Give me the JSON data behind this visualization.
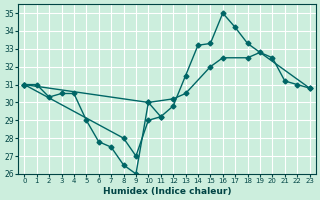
{
  "title": "",
  "xlabel": "Humidex (Indice chaleur)",
  "ylabel": "",
  "bg_color": "#cceedd",
  "line_color": "#006666",
  "grid_color": "#ffffff",
  "xlim": [
    -0.5,
    23.5
  ],
  "ylim": [
    26,
    35.5
  ],
  "yticks": [
    26,
    27,
    28,
    29,
    30,
    31,
    32,
    33,
    34,
    35
  ],
  "xticks": [
    0,
    1,
    2,
    3,
    4,
    5,
    6,
    7,
    8,
    9,
    10,
    11,
    12,
    13,
    14,
    15,
    16,
    17,
    18,
    19,
    20,
    21,
    22,
    23
  ],
  "series1": {
    "x": [
      0,
      1,
      2,
      3,
      4,
      5,
      6,
      7,
      8,
      9,
      10,
      11,
      12,
      13,
      14,
      15,
      16,
      17,
      18,
      19,
      20,
      21,
      22,
      23
    ],
    "y": [
      31.0,
      31.0,
      30.3,
      30.5,
      30.5,
      29.0,
      27.8,
      27.5,
      26.5,
      26.0,
      30.0,
      29.2,
      null,
      null,
      null,
      null,
      null,
      null,
      null,
      null,
      null,
      null,
      null,
      null
    ]
  },
  "series2": {
    "x": [
      0,
      1,
      2,
      3,
      4,
      5,
      6,
      7,
      8,
      9,
      10,
      11,
      12,
      13,
      14,
      15,
      16,
      17,
      18,
      19,
      20,
      21,
      22,
      23
    ],
    "y": [
      31.0,
      null,
      null,
      null,
      null,
      null,
      null,
      null,
      28.0,
      27.0,
      29.0,
      29.2,
      29.8,
      31.5,
      33.2,
      33.3,
      35.0,
      34.2,
      33.3,
      null,
      null,
      null,
      null,
      30.8
    ]
  },
  "series3": {
    "x": [
      0,
      1,
      2,
      3,
      4,
      5,
      6,
      7,
      8,
      9,
      10,
      11,
      12,
      13,
      14,
      15,
      16,
      17,
      18,
      19,
      20,
      21,
      22,
      23
    ],
    "y": [
      31.0,
      null,
      null,
      null,
      null,
      null,
      null,
      null,
      null,
      null,
      30.0,
      null,
      30.2,
      30.5,
      null,
      32.0,
      32.5,
      null,
      32.5,
      32.8,
      32.5,
      31.2,
      31.0,
      30.8
    ]
  }
}
